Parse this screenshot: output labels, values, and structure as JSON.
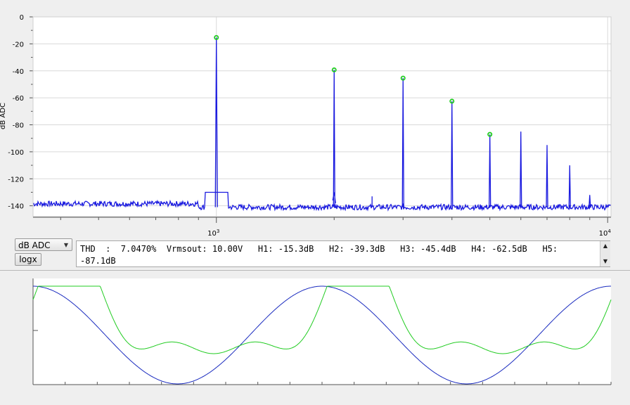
{
  "spectrum_plot": {
    "y_label": "dB ADC",
    "y_ticks": [
      "0",
      "-20",
      "-40",
      "-60",
      "-80",
      "-100",
      "-120",
      "-140"
    ],
    "x_tick_base": "10",
    "x_ticks": [
      {
        "base": "10",
        "exp": "3"
      },
      {
        "base": "10",
        "exp": "4"
      }
    ],
    "trace_color": "#1a1adf",
    "marker_color": "#22cc22"
  },
  "controls": {
    "unit_select_value": "dB ADC",
    "logx_label": "logx"
  },
  "readout": {
    "text": "THD  :  7.0470%  Vrmsout: 10.00V   H1: -15.3dB   H2: -39.3dB   H3: -45.4dB   H4: -62.5dB   H5: -87.1dB"
  },
  "chart_data": [
    {
      "type": "line",
      "title": "",
      "xlabel": "",
      "ylabel": "dB ADC",
      "x_scale": "log",
      "xlim": [
        340,
        10200
      ],
      "ylim": [
        -148,
        0
      ],
      "grid": true,
      "series": [
        {
          "values_description_free": true,
          "peaks": [
            {
              "x": 1000,
              "y": -15.3
            },
            {
              "x": 2000,
              "y": -39.3
            },
            {
              "x": 3000,
              "y": -45.4
            },
            {
              "x": 4000,
              "y": -62.5
            },
            {
              "x": 5000,
              "y": -87.1
            },
            {
              "x": 6000,
              "y": -85
            },
            {
              "x": 7000,
              "y": -95
            },
            {
              "x": 8000,
              "y": -110
            },
            {
              "x": 9000,
              "y": -132
            }
          ],
          "noise_floor": -141
        }
      ],
      "markers": [
        {
          "x": 1000,
          "y": -15.3
        },
        {
          "x": 2000,
          "y": -39.3
        },
        {
          "x": 3000,
          "y": -45.4
        },
        {
          "x": 4000,
          "y": -62.5
        },
        {
          "x": 5000,
          "y": -87.1
        }
      ]
    },
    {
      "type": "line",
      "title": "",
      "xlabel": "",
      "ylabel": "",
      "x_cycles": 2,
      "series": [
        {
          "color": "#1a2bbf",
          "shape": "cosine",
          "cycles": 2
        },
        {
          "color": "#22cc22",
          "shape": "distorted-sine",
          "cycles": 2
        }
      ]
    }
  ]
}
